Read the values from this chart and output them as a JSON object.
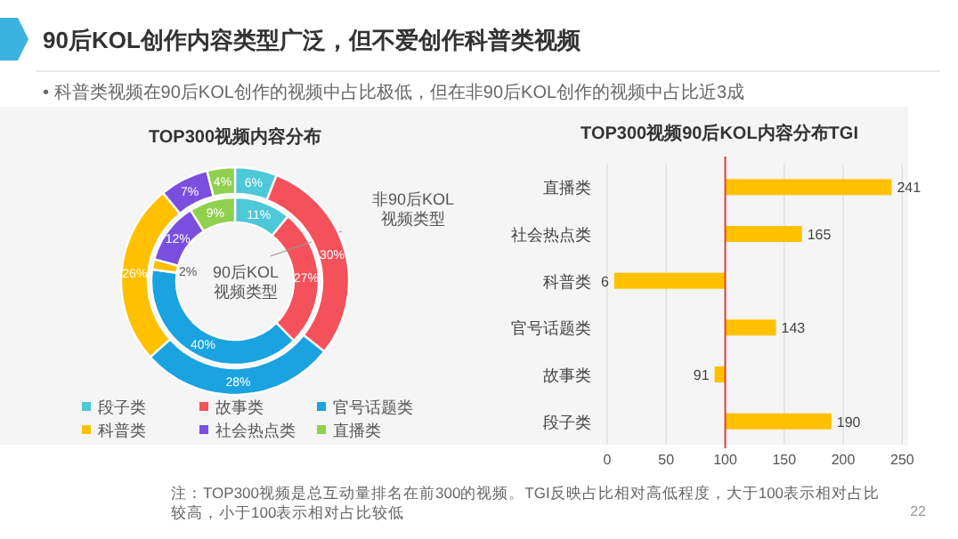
{
  "chart_data": [
    {
      "type": "donut",
      "title": "TOP300视频内容分布",
      "categories": [
        "段子类",
        "故事类",
        "官号话题类",
        "科普类",
        "社会热点类",
        "直播类"
      ],
      "colors": [
        "#4cc8d8",
        "#f5515b",
        "#1aa3e0",
        "#ffc000",
        "#7a4fe0",
        "#8fd14f"
      ],
      "series": [
        {
          "name": "90后KOL视频类型",
          "values": [
            11,
            27,
            40,
            2,
            12,
            9
          ],
          "value_labels": [
            "11%",
            "27%",
            "40%",
            "2%",
            "12%",
            "9%"
          ]
        },
        {
          "name": "非90后KOL视频类型",
          "values": [
            6,
            30,
            28,
            26,
            7,
            4
          ],
          "value_labels": [
            "6%",
            "30%",
            "28%",
            "26%",
            "7%",
            "4%"
          ]
        }
      ],
      "legend": "bottom",
      "annotations": [
        "90后KOL创作内容类型广泛，但不爱创作科普类视频",
        "• 科普类视频在90后KOL创作的视频中占比极低，但在非90后KOL创作的视频中占比近3成"
      ]
    },
    {
      "type": "bar",
      "orientation": "horizontal",
      "title": "TOP300视频90后KOL内容分布TGI",
      "categories": [
        "直播类",
        "社会热点类",
        "科普类",
        "官号话题类",
        "故事类",
        "段子类"
      ],
      "base": [
        100,
        100,
        100,
        100,
        100,
        100
      ],
      "values": [
        141,
        65,
        -94,
        43,
        -9,
        90
      ],
      "value_labels": [
        "241",
        "165",
        "6",
        "143",
        "91",
        "190"
      ],
      "color": "#ffc000",
      "xlim": [
        0,
        255
      ],
      "xticks": [
        0,
        50,
        100,
        150,
        200,
        250
      ],
      "grid": "x",
      "ref_lines": [
        {
          "axis": "x",
          "value": 100,
          "color": "#e0403a"
        }
      ],
      "annotations": [
        "注：TOP300视频是总互动量排名在前300的视频。TGI反映占比相对高低程度，大于100表示相对占比较高，小于100表示相对占比较低",
        "22"
      ]
    }
  ]
}
